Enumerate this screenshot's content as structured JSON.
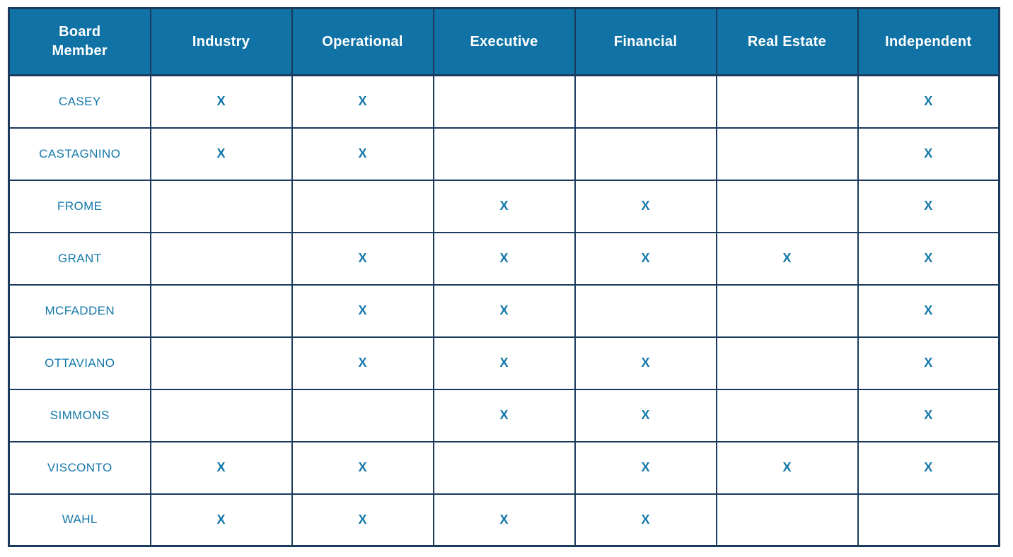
{
  "colors": {
    "header_bg": "#1173A5",
    "header_text": "#FFFFFF",
    "grid_border": "#1A3A5E",
    "cell_text": "#1377A9"
  },
  "table": {
    "mark_glyph": "X",
    "columns": [
      {
        "id": "board-member",
        "label": "Board Member"
      },
      {
        "id": "industry",
        "label": "Industry"
      },
      {
        "id": "operational",
        "label": "Operational"
      },
      {
        "id": "executive",
        "label": "Executive"
      },
      {
        "id": "financial",
        "label": "Financial"
      },
      {
        "id": "real-estate",
        "label": "Real Estate"
      },
      {
        "id": "independent",
        "label": "Independent"
      }
    ],
    "rows": [
      {
        "member": "CASEY",
        "marks": [
          1,
          1,
          0,
          0,
          0,
          1
        ]
      },
      {
        "member": "CASTAGNINO",
        "marks": [
          1,
          1,
          0,
          0,
          0,
          1
        ]
      },
      {
        "member": "FROME",
        "marks": [
          0,
          0,
          1,
          1,
          0,
          1
        ]
      },
      {
        "member": "GRANT",
        "marks": [
          0,
          1,
          1,
          1,
          1,
          1
        ]
      },
      {
        "member": "MCFADDEN",
        "marks": [
          0,
          1,
          1,
          0,
          0,
          1
        ]
      },
      {
        "member": "OTTAVIANO",
        "marks": [
          0,
          1,
          1,
          1,
          0,
          1
        ]
      },
      {
        "member": "SIMMONS",
        "marks": [
          0,
          0,
          1,
          1,
          0,
          1
        ]
      },
      {
        "member": "VISCONTO",
        "marks": [
          1,
          1,
          0,
          1,
          1,
          1
        ]
      },
      {
        "member": "WAHL",
        "marks": [
          1,
          1,
          1,
          1,
          0,
          0
        ]
      }
    ]
  }
}
